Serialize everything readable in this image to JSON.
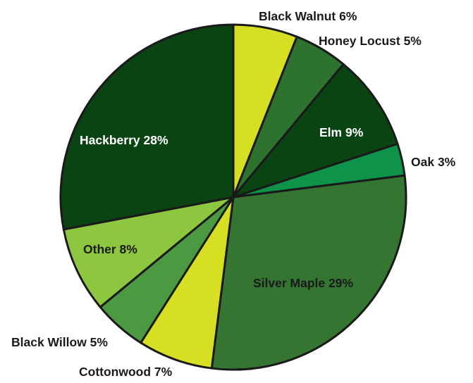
{
  "chart_data": {
    "type": "pie",
    "slices": [
      {
        "label": "Black Walnut 6%",
        "name": "Black Walnut",
        "value": 6,
        "color": "#d7df23"
      },
      {
        "label": "Honey Locust 5%",
        "name": "Honey Locust",
        "value": 5,
        "color": "#2e7230"
      },
      {
        "label": "Elm 9%",
        "name": "Elm",
        "value": 9,
        "color": "#0b4413"
      },
      {
        "label": "Oak 3%",
        "name": "Oak",
        "value": 3,
        "color": "#0e944a"
      },
      {
        "label": "Silver Maple 29%",
        "name": "Silver Maple",
        "value": 29,
        "color": "#337531"
      },
      {
        "label": "Cottonwood 7%",
        "name": "Cottonwood",
        "value": 7,
        "color": "#d7df23"
      },
      {
        "label": "Black Willow 5%",
        "name": "Black Willow",
        "value": 5,
        "color": "#4b9a42"
      },
      {
        "label": "Other 8%",
        "name": "Other",
        "value": 8,
        "color": "#8dc63f"
      },
      {
        "label": "Hackberry 28%",
        "name": "Hackberry",
        "value": 28,
        "color": "#0b4413"
      }
    ]
  }
}
